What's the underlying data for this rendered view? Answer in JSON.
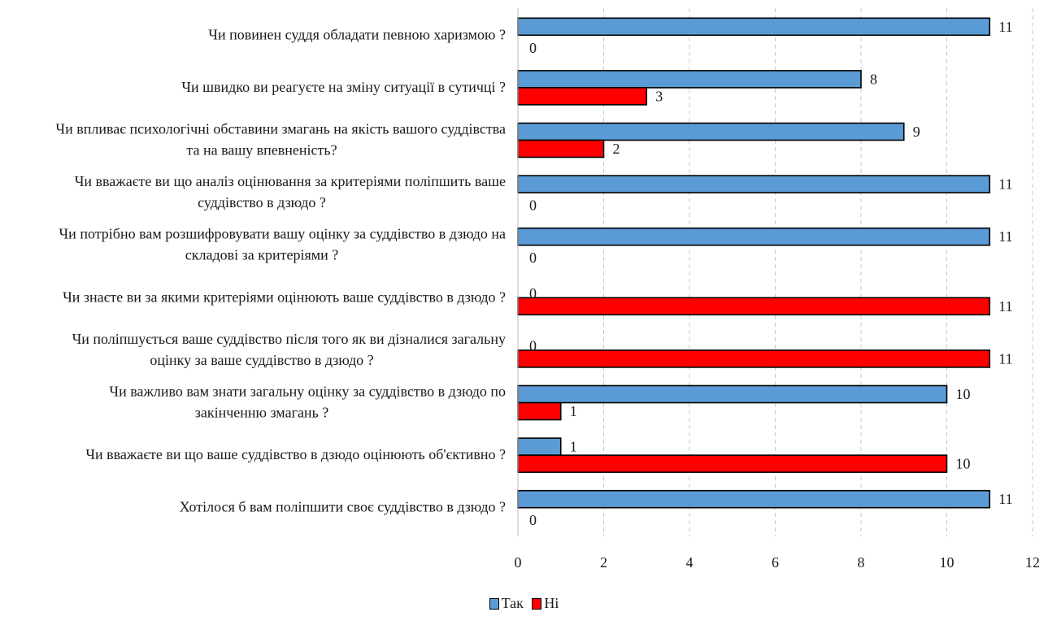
{
  "chart_data": {
    "type": "bar",
    "orientation": "horizontal",
    "categories": [
      "Чи повинен суддя обладати певною харизмою ?",
      "Чи швидко ви реагуєте на зміну ситуації в сутичці ?",
      "Чи впливає психологічні обставини змагань  на якість вашого суддівства та на вашу впевненість?",
      "Чи вважаєте ви що аналіз оцінювання за критеріями поліпшить ваше суддівство в дзюдо ?",
      "Чи потрібно вам розшифровувати вашу оцінку за суддівство в дзюдо на складові за критеріями ?",
      "Чи знаєте ви за якими критеріями оцінюють ваше суддівство в дзюдо ?",
      "Чи поліпшується ваше суддівство після того як ви дізналися загальну оцінку за ваше суддівство в дзюдо ?",
      "Чи важливо вам знати загальну оцінку за суддівство в дзюдо по закінченню змагань ?",
      "Чи вважаєте ви що ваше суддівство в дзюдо оцінюють об'єктивно ?",
      "Хотілося б вам поліпшити своє суддівство в дзюдо ?"
    ],
    "category_lines": [
      [
        "Чи повинен суддя обладати певною харизмою ?"
      ],
      [
        "Чи швидко ви реагуєте на зміну ситуації в сутичці ?"
      ],
      [
        "Чи впливає психологічні обставини змагань  на якість вашого суддівства",
        "та на вашу впевненість?"
      ],
      [
        "Чи вважаєте ви що аналіз оцінювання за критеріями поліпшить ваше",
        "суддівство в дзюдо ?"
      ],
      [
        "Чи потрібно вам розшифровувати вашу оцінку за суддівство в дзюдо на",
        "складові за критеріями ?"
      ],
      [
        "Чи знаєте ви за якими критеріями оцінюють ваше суддівство в дзюдо ?"
      ],
      [
        "Чи поліпшується ваше суддівство після того як ви дізналися загальну",
        "оцінку за ваше суддівство в дзюдо ?"
      ],
      [
        "Чи важливо вам знати загальну оцінку за суддівство в дзюдо по",
        "закінченню змагань ?"
      ],
      [
        "Чи вважаєте ви що ваше суддівство в дзюдо оцінюють об'єктивно ?"
      ],
      [
        "Хотілося б вам поліпшити своє суддівство в дзюдо ?"
      ]
    ],
    "series": [
      {
        "name": "Так",
        "color": "#5b9bd5",
        "values": [
          11,
          8,
          9,
          11,
          11,
          0,
          0,
          10,
          1,
          11
        ]
      },
      {
        "name": "Ні",
        "color": "#ff0000",
        "values": [
          0,
          3,
          2,
          0,
          0,
          11,
          11,
          1,
          10,
          0
        ]
      }
    ],
    "xlim": [
      0,
      12
    ],
    "xticks": [
      0,
      2,
      4,
      6,
      8,
      10,
      12
    ],
    "grid": true,
    "legend_position": "bottom",
    "title": "",
    "xlabel": "",
    "ylabel": ""
  }
}
